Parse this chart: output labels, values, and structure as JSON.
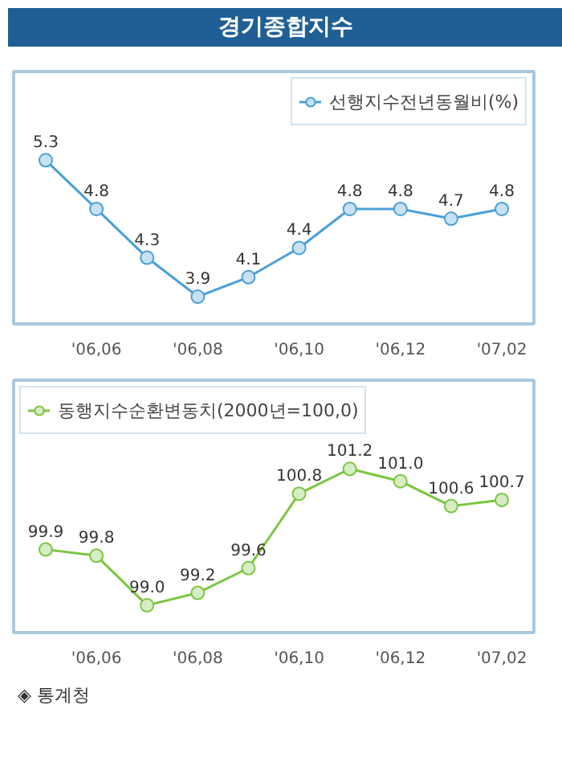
{
  "chart_data": [
    {
      "type": "line",
      "title": "경기종합지수",
      "x": [
        "2006-05",
        "2006-06",
        "2006-07",
        "2006-08",
        "2006-09",
        "2006-10",
        "2006-11",
        "2006-12",
        "2007-01",
        "2007-02"
      ],
      "series": [
        {
          "name": "선행지수전년동월비(%)",
          "color": "#4a9fd8",
          "values": [
            5.3,
            4.8,
            4.3,
            3.9,
            4.1,
            4.4,
            4.8,
            4.8,
            4.7,
            4.8
          ]
        }
      ],
      "xlim": [
        "2006-04-12",
        "2007-02-20"
      ],
      "xticks": [
        {
          "value": "2006-06",
          "label": "'06,06"
        },
        {
          "value": "2006-08",
          "label": "'06,08"
        },
        {
          "value": "2006-10",
          "label": "'06,10"
        },
        {
          "value": "2006-12",
          "label": "'06,12"
        },
        {
          "value": "2007-02",
          "label": "'07,02"
        }
      ],
      "tick_labels": "x",
      "data_labels": true,
      "marker": "circle",
      "legend": "top right",
      "grid": false
    },
    {
      "type": "line",
      "x": [
        "2006-05",
        "2006-06",
        "2006-07",
        "2006-08",
        "2006-09",
        "2006-10",
        "2006-11",
        "2006-12",
        "2007-01",
        "2007-02"
      ],
      "series": [
        {
          "name": "동행지수순환변동치(2000년=100,0)",
          "color": "#7cc540",
          "values": [
            99.9,
            99.8,
            99.0,
            99.2,
            99.6,
            100.8,
            101.2,
            101.0,
            100.6,
            100.7
          ],
          "value_labels": [
            "99.9",
            "99.8",
            "99.0",
            "99.2",
            "99.6",
            "100.8",
            "101.2",
            "101.0",
            "100.6",
            "100.7"
          ]
        }
      ],
      "xlim": [
        "2006-04-12",
        "2007-02-20"
      ],
      "xticks": [
        {
          "value": "2006-06",
          "label": "'06,06"
        },
        {
          "value": "2006-08",
          "label": "'06,08"
        },
        {
          "value": "2006-10",
          "label": "'06,10"
        },
        {
          "value": "2006-12",
          "label": "'06,12"
        },
        {
          "value": "2007-02",
          "label": "'07,02"
        }
      ],
      "tick_labels": "x",
      "marker": "circle",
      "legend": "top left",
      "grid": false,
      "annotations": [
        "◈ 통계청"
      ]
    }
  ]
}
